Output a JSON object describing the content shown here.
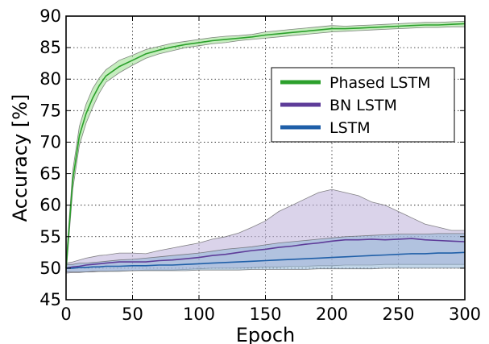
{
  "chart_data": {
    "type": "line",
    "title": "",
    "xlabel": "Epoch",
    "ylabel": "Accuracy [%]",
    "xlim": [
      0,
      300
    ],
    "ylim": [
      45,
      90
    ],
    "grid": true,
    "legend_position": "center-right",
    "x_ticks": [
      "0",
      "50",
      "100",
      "150",
      "200",
      "250",
      "300"
    ],
    "y_ticks": [
      "45",
      "50",
      "55",
      "60",
      "65",
      "70",
      "75",
      "80",
      "85",
      "90"
    ],
    "x": [
      0,
      5,
      10,
      15,
      20,
      25,
      30,
      40,
      50,
      60,
      70,
      80,
      90,
      100,
      110,
      120,
      130,
      140,
      150,
      160,
      170,
      180,
      190,
      200,
      210,
      220,
      230,
      240,
      250,
      260,
      270,
      280,
      290,
      300
    ],
    "series": [
      {
        "name": "Phased LSTM",
        "color": "#2ca02c",
        "band_color": "#98df8a",
        "values": [
          50,
          64,
          71,
          74.5,
          77,
          79,
          80.5,
          82,
          83,
          84,
          84.6,
          85.1,
          85.5,
          85.8,
          86.1,
          86.3,
          86.5,
          86.7,
          87,
          87.2,
          87.4,
          87.6,
          87.8,
          88,
          88,
          88.1,
          88.2,
          88.3,
          88.4,
          88.5,
          88.6,
          88.6,
          88.7,
          88.8
        ],
        "lower": [
          49,
          62.5,
          69.5,
          73,
          75.5,
          77.8,
          79.5,
          81,
          82.2,
          83.3,
          84,
          84.5,
          85,
          85.3,
          85.6,
          85.8,
          86.1,
          86.3,
          86.5,
          86.7,
          86.9,
          87.1,
          87.3,
          87.5,
          87.6,
          87.7,
          87.8,
          87.9,
          88,
          88.1,
          88.2,
          88.2,
          88.3,
          88.3
        ],
        "upper": [
          51,
          65.5,
          72.5,
          76,
          78.5,
          80.2,
          81.5,
          83,
          83.8,
          84.7,
          85.2,
          85.7,
          86,
          86.3,
          86.6,
          86.8,
          86.9,
          87.1,
          87.5,
          87.7,
          87.9,
          88.1,
          88.3,
          88.5,
          88.4,
          88.5,
          88.6,
          88.7,
          88.8,
          88.9,
          89,
          89,
          89.1,
          89.2
        ]
      },
      {
        "name": "BN LSTM",
        "color": "#5e3c99",
        "band_color": "#bcaed9",
        "values": [
          50,
          50.2,
          50.3,
          50.5,
          50.6,
          50.7,
          50.8,
          51,
          51,
          51,
          51.2,
          51.3,
          51.5,
          51.7,
          52,
          52.2,
          52.5,
          52.8,
          53,
          53.3,
          53.5,
          53.8,
          54,
          54.3,
          54.5,
          54.5,
          54.6,
          54.5,
          54.6,
          54.7,
          54.5,
          54.4,
          54.3,
          54.2
        ],
        "lower": [
          49.2,
          49.3,
          49.3,
          49.4,
          49.4,
          49.5,
          49.5,
          49.6,
          49.6,
          49.7,
          49.7,
          49.7,
          49.8,
          49.9,
          50,
          50,
          50,
          50.1,
          50.2,
          50.2,
          50.3,
          50.3,
          50.4,
          50.4,
          50.5,
          50.5,
          50.5,
          50.6,
          50.6,
          50.6,
          50.6,
          50.6,
          50.6,
          50.6
        ],
        "upper": [
          50.8,
          51,
          51.3,
          51.6,
          51.8,
          52,
          52.1,
          52.4,
          52.4,
          52.3,
          52.8,
          53.2,
          53.6,
          54,
          54.6,
          55,
          55.6,
          56.5,
          57.5,
          59,
          60,
          61,
          62,
          62.5,
          62,
          61.5,
          60.5,
          60,
          59,
          58,
          57,
          56.5,
          56,
          56
        ]
      },
      {
        "name": "LSTM",
        "color": "#1f5fa8",
        "band_color": "#8fb4d6",
        "values": [
          50,
          50,
          50.1,
          50.1,
          50.2,
          50.2,
          50.3,
          50.3,
          50.4,
          50.4,
          50.5,
          50.5,
          50.6,
          50.7,
          50.8,
          50.9,
          51,
          51.1,
          51.2,
          51.3,
          51.4,
          51.5,
          51.6,
          51.7,
          51.8,
          51.9,
          52,
          52.1,
          52.2,
          52.3,
          52.3,
          52.4,
          52.4,
          52.5
        ],
        "lower": [
          49.4,
          49.4,
          49.4,
          49.4,
          49.5,
          49.5,
          49.5,
          49.5,
          49.6,
          49.6,
          49.6,
          49.6,
          49.6,
          49.7,
          49.7,
          49.7,
          49.7,
          49.8,
          49.8,
          49.8,
          49.8,
          49.8,
          49.9,
          49.9,
          49.9,
          49.9,
          49.9,
          50,
          50,
          50,
          50,
          50,
          50,
          50
        ],
        "upper": [
          50.6,
          50.6,
          50.8,
          50.8,
          50.9,
          51,
          51.1,
          51.3,
          51.4,
          51.6,
          51.8,
          52,
          52.2,
          52.4,
          52.7,
          53,
          53.2,
          53.4,
          53.7,
          54,
          54.2,
          54.4,
          54.6,
          54.8,
          55,
          55.1,
          55.2,
          55.3,
          55.4,
          55.4,
          55.4,
          55.5,
          55.5,
          55.5
        ]
      }
    ]
  }
}
